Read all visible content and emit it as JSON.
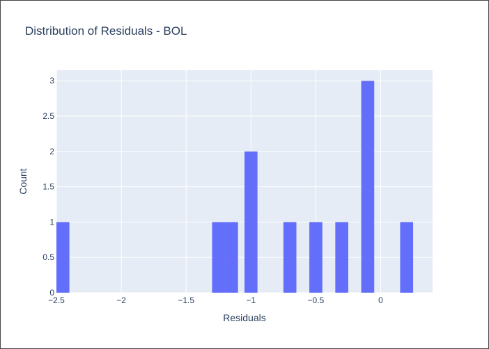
{
  "chart_data": {
    "type": "bar",
    "title": "Distribution of Residuals - BOL",
    "xlabel": "Residuals",
    "ylabel": "Count",
    "xlim": [
      -2.5,
      0.4
    ],
    "ylim": [
      0,
      3.15
    ],
    "x_ticks": [
      {
        "value": -2.5,
        "label": "−2.5"
      },
      {
        "value": -2,
        "label": "−2"
      },
      {
        "value": -1.5,
        "label": "−1.5"
      },
      {
        "value": -1,
        "label": "−1"
      },
      {
        "value": -0.5,
        "label": "−0.5"
      },
      {
        "value": 0,
        "label": "0"
      }
    ],
    "y_ticks": [
      {
        "value": 0,
        "label": "0"
      },
      {
        "value": 0.5,
        "label": "0.5"
      },
      {
        "value": 1,
        "label": "1"
      },
      {
        "value": 1.5,
        "label": "1.5"
      },
      {
        "value": 2,
        "label": "2"
      },
      {
        "value": 2.5,
        "label": "2.5"
      },
      {
        "value": 3,
        "label": "3"
      }
    ],
    "bins": [
      {
        "x0": -2.5,
        "x1": -2.4,
        "count": 1
      },
      {
        "x0": -1.3,
        "x1": -1.2,
        "count": 1
      },
      {
        "x0": -1.2,
        "x1": -1.1,
        "count": 1
      },
      {
        "x0": -1.05,
        "x1": -0.95,
        "count": 2
      },
      {
        "x0": -0.75,
        "x1": -0.65,
        "count": 1
      },
      {
        "x0": -0.55,
        "x1": -0.45,
        "count": 1
      },
      {
        "x0": -0.35,
        "x1": -0.25,
        "count": 1
      },
      {
        "x0": -0.15,
        "x1": -0.05,
        "count": 3
      },
      {
        "x0": 0.15,
        "x1": 0.25,
        "count": 1
      }
    ],
    "grid": true,
    "bar_color": "#636efa",
    "plot_bg": "#e5ecf6",
    "grid_color": "#ffffff"
  }
}
